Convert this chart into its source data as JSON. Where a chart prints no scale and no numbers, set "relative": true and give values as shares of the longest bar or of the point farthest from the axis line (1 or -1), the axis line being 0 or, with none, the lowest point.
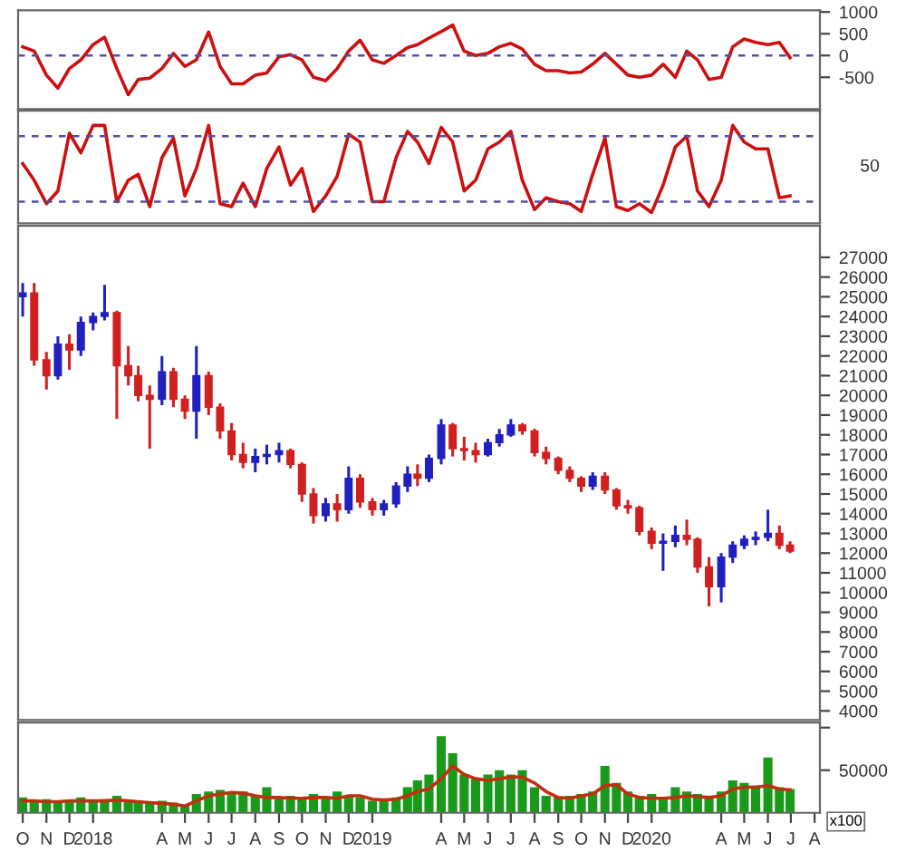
{
  "chart_data": [
    {
      "type": "line",
      "x": [
        "2017-10-01",
        "2017-10-16",
        "2017-11-01",
        "2017-11-16",
        "2017-12-01",
        "2017-12-16",
        "2018-01-01",
        "2018-01-16",
        "2018-02-01",
        "2018-02-16",
        "2018-03-01",
        "2018-03-16",
        "2018-04-01",
        "2018-04-16",
        "2018-05-01",
        "2018-05-16",
        "2018-06-01",
        "2018-06-16",
        "2018-07-01",
        "2018-07-16",
        "2018-08-01",
        "2018-08-16",
        "2018-09-01",
        "2018-09-16",
        "2018-10-01",
        "2018-10-16",
        "2018-11-01",
        "2018-11-16",
        "2018-12-01",
        "2018-12-16",
        "2019-01-01",
        "2019-01-16",
        "2019-02-01",
        "2019-02-16",
        "2019-03-01",
        "2019-03-16",
        "2019-04-01",
        "2019-04-16",
        "2019-05-01",
        "2019-05-16",
        "2019-06-01",
        "2019-06-16",
        "2019-07-01",
        "2019-07-16",
        "2019-08-01",
        "2019-08-16",
        "2019-09-01",
        "2019-09-16",
        "2019-10-01",
        "2019-10-16",
        "2019-11-01",
        "2019-11-16",
        "2019-12-01",
        "2019-12-16",
        "2020-01-01",
        "2020-01-16",
        "2020-02-01",
        "2020-02-16",
        "2020-03-01",
        "2020-03-16",
        "2020-04-01",
        "2020-04-16",
        "2020-05-01",
        "2020-05-16",
        "2020-06-01",
        "2020-06-16",
        "2020-06-30"
      ],
      "series": [
        {
          "color": "#cc1010",
          "values": [
            200,
            100,
            -450,
            -750,
            -300,
            -100,
            250,
            420,
            -300,
            -900,
            -550,
            -520,
            -300,
            50,
            -250,
            -100,
            540,
            -250,
            -650,
            -650,
            -450,
            -400,
            -30,
            20,
            -100,
            -500,
            -580,
            -300,
            100,
            350,
            -100,
            -180,
            0,
            180,
            250,
            400,
            550,
            700,
            100,
            0,
            50,
            200,
            280,
            150,
            -200,
            -350,
            -350,
            -400,
            -380,
            -200,
            50,
            -200,
            -450,
            -500,
            -450,
            -200,
            -500,
            100,
            -100,
            -550,
            -500,
            200,
            380,
            300,
            250,
            300,
            -50
          ]
        }
      ],
      "xlim": [
        "2017-09-25",
        "2020-08-08"
      ],
      "ylim": [
        -1230,
        1040
      ],
      "yticks": [
        -500,
        0,
        500,
        1000
      ],
      "tick_labels": "y",
      "ref_lines": [
        {
          "axis": "y",
          "value": 0,
          "color": "#5050a0",
          "line_style": "dashed"
        }
      ]
    },
    {
      "type": "line",
      "x": [
        "2017-10-01",
        "2017-10-16",
        "2017-11-01",
        "2017-11-16",
        "2017-12-01",
        "2017-12-16",
        "2018-01-01",
        "2018-01-16",
        "2018-02-01",
        "2018-02-16",
        "2018-03-01",
        "2018-03-16",
        "2018-04-01",
        "2018-04-16",
        "2018-05-01",
        "2018-05-16",
        "2018-06-01",
        "2018-06-16",
        "2018-07-01",
        "2018-07-16",
        "2018-08-01",
        "2018-08-16",
        "2018-09-01",
        "2018-09-16",
        "2018-10-01",
        "2018-10-16",
        "2018-11-01",
        "2018-11-16",
        "2018-12-01",
        "2018-12-16",
        "2019-01-01",
        "2019-01-16",
        "2019-02-01",
        "2019-02-16",
        "2019-03-01",
        "2019-03-16",
        "2019-04-01",
        "2019-04-16",
        "2019-05-01",
        "2019-05-16",
        "2019-06-01",
        "2019-06-16",
        "2019-07-01",
        "2019-07-16",
        "2019-08-01",
        "2019-08-16",
        "2019-09-01",
        "2019-09-16",
        "2019-10-01",
        "2019-10-16",
        "2019-11-01",
        "2019-11-16",
        "2019-12-01",
        "2019-12-16",
        "2020-01-01",
        "2020-01-16",
        "2020-02-01",
        "2020-02-16",
        "2020-03-01",
        "2020-03-16",
        "2020-04-01",
        "2020-04-16",
        "2020-05-01",
        "2020-05-16",
        "2020-06-01",
        "2020-06-16",
        "2020-06-30"
      ],
      "series": [
        {
          "color": "#cc1010",
          "values": [
            0.61,
            0.44,
            0.2,
            0.33,
            0.92,
            0.72,
            1,
            1,
            0.22,
            0.44,
            0.5,
            0.17,
            0.67,
            0.87,
            0.28,
            0.56,
            1,
            0.2,
            0.17,
            0.41,
            0.17,
            0.56,
            0.78,
            0.39,
            0.56,
            0.12,
            0.28,
            0.48,
            0.91,
            0.83,
            0.22,
            0.22,
            0.67,
            0.94,
            0.83,
            0.61,
            0.98,
            0.83,
            0.33,
            0.44,
            0.76,
            0.83,
            0.94,
            0.44,
            0.14,
            0.26,
            0.22,
            0.2,
            0.12,
            0.5,
            0.87,
            0.17,
            0.13,
            0.2,
            0.11,
            0.39,
            0.78,
            0.89,
            0.33,
            0.17,
            0.44,
            1,
            0.83,
            0.76,
            0.76,
            0.26,
            0.28
          ]
        }
      ],
      "relative": true,
      "xlim": [
        "2017-09-25",
        "2020-08-08"
      ],
      "tick_labels": false,
      "annotations": [
        "50"
      ],
      "ref_lines": [
        {
          "axis": "y",
          "value": 0.22,
          "color": "#5050a0",
          "line_style": "dashed"
        },
        {
          "axis": "y",
          "value": 0.89,
          "color": "#5050a0",
          "line_style": "dashed"
        }
      ]
    },
    {
      "type": "candlestick",
      "x": [
        "2017-10-01",
        "2017-10-16",
        "2017-11-01",
        "2017-11-16",
        "2017-12-01",
        "2017-12-16",
        "2018-01-01",
        "2018-01-16",
        "2018-02-01",
        "2018-02-16",
        "2018-03-01",
        "2018-03-16",
        "2018-04-01",
        "2018-04-16",
        "2018-05-01",
        "2018-05-16",
        "2018-06-01",
        "2018-06-16",
        "2018-07-01",
        "2018-07-16",
        "2018-08-01",
        "2018-08-16",
        "2018-09-01",
        "2018-09-16",
        "2018-10-01",
        "2018-10-16",
        "2018-11-01",
        "2018-11-16",
        "2018-12-01",
        "2018-12-16",
        "2019-01-01",
        "2019-01-16",
        "2019-02-01",
        "2019-02-16",
        "2019-03-01",
        "2019-03-16",
        "2019-04-01",
        "2019-04-16",
        "2019-05-01",
        "2019-05-16",
        "2019-06-01",
        "2019-06-16",
        "2019-07-01",
        "2019-07-16",
        "2019-08-01",
        "2019-08-16",
        "2019-09-01",
        "2019-09-16",
        "2019-10-01",
        "2019-10-16",
        "2019-11-01",
        "2019-11-16",
        "2019-12-01",
        "2019-12-16",
        "2020-01-01",
        "2020-01-16",
        "2020-02-01",
        "2020-02-16",
        "2020-03-01",
        "2020-03-16",
        "2020-04-01",
        "2020-04-16",
        "2020-05-01",
        "2020-05-16",
        "2020-06-01",
        "2020-06-16",
        "2020-06-30"
      ],
      "ohlc": [
        [
          25000,
          25700,
          24000,
          25200
        ],
        [
          25200,
          25700,
          21500,
          21800
        ],
        [
          21800,
          22200,
          20300,
          21000
        ],
        [
          21000,
          23000,
          20800,
          22600
        ],
        [
          22600,
          23100,
          21300,
          22300
        ],
        [
          22300,
          24000,
          22000,
          23700
        ],
        [
          23700,
          24200,
          23300,
          24000
        ],
        [
          24000,
          25600,
          23800,
          24200
        ],
        [
          24200,
          24300,
          18800,
          21500
        ],
        [
          21500,
          22500,
          20500,
          21000
        ],
        [
          21000,
          21500,
          19700,
          20000
        ],
        [
          20000,
          20500,
          17300,
          19800
        ],
        [
          19800,
          22000,
          19500,
          21200
        ],
        [
          21200,
          21400,
          19400,
          19800
        ],
        [
          19800,
          20000,
          18800,
          19200
        ],
        [
          19200,
          22500,
          17800,
          21000
        ],
        [
          21000,
          21200,
          19000,
          19400
        ],
        [
          19400,
          19600,
          17800,
          18200
        ],
        [
          18200,
          18600,
          16700,
          17000
        ],
        [
          17000,
          17600,
          16300,
          16600
        ],
        [
          16600,
          17300,
          16100,
          16900
        ],
        [
          16900,
          17500,
          16500,
          17000
        ],
        [
          17000,
          17600,
          16600,
          17200
        ],
        [
          17200,
          17300,
          16300,
          16500
        ],
        [
          16500,
          16600,
          14600,
          15000
        ],
        [
          15000,
          15300,
          13500,
          13900
        ],
        [
          13900,
          14800,
          13600,
          14500
        ],
        [
          14500,
          15000,
          13600,
          14200
        ],
        [
          14200,
          16400,
          14000,
          15800
        ],
        [
          15800,
          16000,
          14300,
          14600
        ],
        [
          14600,
          14800,
          13900,
          14200
        ],
        [
          14200,
          14700,
          13900,
          14500
        ],
        [
          14500,
          15600,
          14300,
          15400
        ],
        [
          15400,
          16400,
          15100,
          16000
        ],
        [
          16000,
          16500,
          15400,
          15800
        ],
        [
          15800,
          17000,
          15600,
          16800
        ],
        [
          16800,
          18800,
          16500,
          18500
        ],
        [
          18500,
          18600,
          16900,
          17300
        ],
        [
          17300,
          17900,
          16700,
          17200
        ],
        [
          17200,
          17600,
          16600,
          17000
        ],
        [
          17000,
          17800,
          16900,
          17600
        ],
        [
          17600,
          18300,
          17400,
          18000
        ],
        [
          18000,
          18800,
          17900,
          18500
        ],
        [
          18500,
          18600,
          18000,
          18200
        ],
        [
          18200,
          18300,
          16900,
          17100
        ],
        [
          17100,
          17400,
          16500,
          16800
        ],
        [
          16800,
          16900,
          16000,
          16200
        ],
        [
          16200,
          16400,
          15600,
          15800
        ],
        [
          15800,
          15900,
          15100,
          15400
        ],
        [
          15400,
          16100,
          15200,
          15900
        ],
        [
          15900,
          16100,
          15000,
          15200
        ],
        [
          15200,
          15300,
          14200,
          14400
        ],
        [
          14400,
          14700,
          14000,
          14300
        ],
        [
          14300,
          14400,
          12900,
          13100
        ],
        [
          13100,
          13300,
          12200,
          12500
        ],
        [
          12500,
          13000,
          11100,
          12600
        ],
        [
          12600,
          13400,
          12300,
          12900
        ],
        [
          12900,
          13700,
          12400,
          12700
        ],
        [
          12700,
          12800,
          11000,
          11300
        ],
        [
          11300,
          11800,
          9300,
          10300
        ],
        [
          10300,
          12000,
          9500,
          11800
        ],
        [
          11800,
          12600,
          11500,
          12400
        ],
        [
          12400,
          12900,
          12200,
          12700
        ],
        [
          12700,
          13100,
          12400,
          12800
        ],
        [
          12800,
          14200,
          12600,
          13000
        ],
        [
          13000,
          13400,
          12200,
          12400
        ],
        [
          12400,
          12600,
          12000,
          12100
        ]
      ],
      "colors": [
        "#2020c0",
        "#d02020",
        "#d02020",
        "#2020c0",
        "#d02020",
        "#2020c0",
        "#2020c0",
        "#2020c0",
        "#d02020",
        "#d02020",
        "#d02020",
        "#d02020",
        "#2020c0",
        "#d02020",
        "#d02020",
        "#2020c0",
        "#d02020",
        "#d02020",
        "#d02020",
        "#d02020",
        "#2020c0",
        "#2020c0",
        "#2020c0",
        "#d02020",
        "#d02020",
        "#d02020",
        "#2020c0",
        "#d02020",
        "#2020c0",
        "#d02020",
        "#d02020",
        "#2020c0",
        "#2020c0",
        "#2020c0",
        "#d02020",
        "#2020c0",
        "#2020c0",
        "#d02020",
        "#d02020",
        "#d02020",
        "#2020c0",
        "#2020c0",
        "#2020c0",
        "#d02020",
        "#d02020",
        "#d02020",
        "#d02020",
        "#d02020",
        "#d02020",
        "#2020c0",
        "#d02020",
        "#d02020",
        "#d02020",
        "#d02020",
        "#d02020",
        "#2020c0",
        "#2020c0",
        "#d02020",
        "#d02020",
        "#d02020",
        "#2020c0",
        "#2020c0",
        "#2020c0",
        "#2020c0",
        "#2020c0",
        "#d02020",
        "#d02020"
      ],
      "xlim": [
        "2017-09-25",
        "2020-08-08"
      ],
      "ylim": [
        3540,
        28600
      ],
      "yticks": [
        4000,
        5000,
        6000,
        7000,
        8000,
        9000,
        10000,
        11000,
        12000,
        13000,
        14000,
        15000,
        16000,
        17000,
        18000,
        19000,
        20000,
        21000,
        22000,
        23000,
        24000,
        25000,
        26000,
        27000
      ],
      "tick_labels": "y"
    },
    {
      "type": "bar",
      "x": [
        "2017-10-01",
        "2017-10-16",
        "2017-11-01",
        "2017-11-16",
        "2017-12-01",
        "2017-12-16",
        "2018-01-01",
        "2018-01-16",
        "2018-02-01",
        "2018-02-16",
        "2018-03-01",
        "2018-03-16",
        "2018-04-01",
        "2018-04-16",
        "2018-05-01",
        "2018-05-16",
        "2018-06-01",
        "2018-06-16",
        "2018-07-01",
        "2018-07-16",
        "2018-08-01",
        "2018-08-16",
        "2018-09-01",
        "2018-09-16",
        "2018-10-01",
        "2018-10-16",
        "2018-11-01",
        "2018-11-16",
        "2018-12-01",
        "2018-12-16",
        "2019-01-01",
        "2019-01-16",
        "2019-02-01",
        "2019-02-16",
        "2019-03-01",
        "2019-03-16",
        "2019-04-01",
        "2019-04-16",
        "2019-05-01",
        "2019-05-16",
        "2019-06-01",
        "2019-06-16",
        "2019-07-01",
        "2019-07-16",
        "2019-08-01",
        "2019-08-16",
        "2019-09-01",
        "2019-09-16",
        "2019-10-01",
        "2019-10-16",
        "2019-11-01",
        "2019-11-16",
        "2019-12-01",
        "2019-12-16",
        "2020-01-01",
        "2020-01-16",
        "2020-02-01",
        "2020-02-16",
        "2020-03-01",
        "2020-03-16",
        "2020-04-01",
        "2020-04-16",
        "2020-05-01",
        "2020-05-16",
        "2020-06-01",
        "2020-06-16",
        "2020-06-30"
      ],
      "series": [
        {
          "type": "bar",
          "color": "#1a9a1a",
          "values": [
            18000,
            15000,
            16000,
            14000,
            15000,
            18000,
            14000,
            16000,
            20000,
            15000,
            14000,
            12000,
            14000,
            12000,
            9000,
            22000,
            25000,
            27000,
            24000,
            25000,
            20000,
            30000,
            18000,
            20000,
            17000,
            22000,
            18000,
            25000,
            20000,
            18000,
            14000,
            15000,
            18000,
            30000,
            38000,
            45000,
            90000,
            70000,
            45000,
            40000,
            45000,
            50000,
            45000,
            50000,
            30000,
            20000,
            18000,
            20000,
            22000,
            25000,
            55000,
            35000,
            25000,
            20000,
            22000,
            18000,
            30000,
            25000,
            22000,
            20000,
            25000,
            38000,
            35000,
            32000,
            65000,
            30000,
            28000
          ]
        },
        {
          "type": "line",
          "color": "#c03010",
          "values": [
            14000,
            14000,
            13000,
            13000,
            14000,
            14000,
            14000,
            14000,
            15000,
            14000,
            13000,
            12000,
            11000,
            10000,
            8000,
            14000,
            20000,
            22000,
            24000,
            23000,
            20000,
            18000,
            18000,
            17000,
            17000,
            18000,
            18000,
            17000,
            20000,
            20000,
            16000,
            15000,
            16000,
            20000,
            25000,
            28000,
            40000,
            55000,
            45000,
            40000,
            38000,
            40000,
            42000,
            42000,
            35000,
            25000,
            18000,
            17000,
            20000,
            22000,
            32000,
            33000,
            22000,
            18000,
            17000,
            17000,
            18000,
            20000,
            19000,
            18000,
            20000,
            28000,
            30000,
            30000,
            32000,
            28000,
            27000
          ]
        }
      ],
      "xlim": [
        "2017-09-25",
        "2020-08-08"
      ],
      "ylim": [
        0,
        106000
      ],
      "yticks": [
        {
          "value": 50000,
          "label": "50000"
        },
        {
          "value": 100000,
          "label": null
        }
      ],
      "xticks": [
        {
          "value": "2017-10-01",
          "label": "O"
        },
        {
          "value": "2017-11-01",
          "label": "N"
        },
        {
          "value": "2017-12-01",
          "label": "D"
        },
        {
          "value": "2018-01-01",
          "label": "2018"
        },
        {
          "value": "2018-04-01",
          "label": "A"
        },
        {
          "value": "2018-05-01",
          "label": "M"
        },
        {
          "value": "2018-06-01",
          "label": "J"
        },
        {
          "value": "2018-07-01",
          "label": "J"
        },
        {
          "value": "2018-08-01",
          "label": "A"
        },
        {
          "value": "2018-09-01",
          "label": "S"
        },
        {
          "value": "2018-10-01",
          "label": "O"
        },
        {
          "value": "2018-11-01",
          "label": "N"
        },
        {
          "value": "2018-12-01",
          "label": "D"
        },
        {
          "value": "2019-01-01",
          "label": "2019"
        },
        {
          "value": "2019-04-01",
          "label": "A"
        },
        {
          "value": "2019-05-01",
          "label": "M"
        },
        {
          "value": "2019-06-01",
          "label": "J"
        },
        {
          "value": "2019-07-01",
          "label": "J"
        },
        {
          "value": "2019-08-01",
          "label": "A"
        },
        {
          "value": "2019-09-01",
          "label": "S"
        },
        {
          "value": "2019-10-01",
          "label": "O"
        },
        {
          "value": "2019-11-01",
          "label": "N"
        },
        {
          "value": "2019-12-01",
          "label": "D"
        },
        {
          "value": "2020-01-01",
          "label": "2020"
        },
        {
          "value": "2020-04-01",
          "label": "A"
        },
        {
          "value": "2020-05-01",
          "label": "M"
        },
        {
          "value": "2020-06-01",
          "label": "J"
        },
        {
          "value": "2020-07-01",
          "label": "J"
        },
        {
          "value": "2020-08-01",
          "label": "A"
        }
      ],
      "annotations": [
        "x100"
      ]
    }
  ]
}
